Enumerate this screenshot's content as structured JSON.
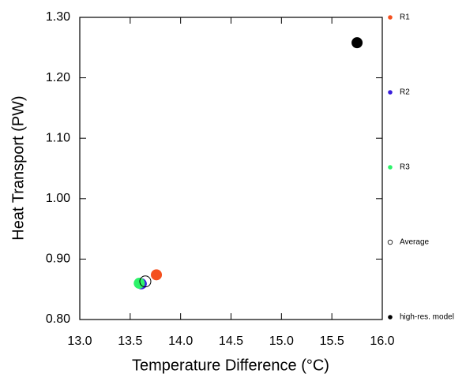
{
  "chart_data": {
    "type": "scatter",
    "x_label": "Temperature Difference (°C)",
    "y_label": "Heat Transport (PW)",
    "xlim": [
      13.0,
      16.0
    ],
    "ylim": [
      0.8,
      1.3
    ],
    "xticks": [
      {
        "value": 13,
        "label": "13.0"
      },
      {
        "value": 13.5,
        "label": "13.5"
      },
      {
        "value": 14,
        "label": "14.0"
      },
      {
        "value": 14.5,
        "label": "14.5"
      },
      {
        "value": 15,
        "label": "15.0"
      },
      {
        "value": 15.5,
        "label": "15.5"
      },
      {
        "value": 16,
        "label": "16.0"
      }
    ],
    "yticks": [
      {
        "value": 0.8,
        "label": "0.80"
      },
      {
        "value": 0.9,
        "label": "0.90"
      },
      {
        "value": 1.0,
        "label": "1.00"
      },
      {
        "value": 1.1,
        "label": "1.10"
      },
      {
        "value": 1.2,
        "label": "1.20"
      },
      {
        "value": 1.3,
        "label": "1.30"
      }
    ],
    "series": [
      {
        "name": "R1",
        "color": "#f4501e",
        "marker": "filled",
        "x": [
          13.76
        ],
        "values": [
          0.874
        ]
      },
      {
        "name": "R2",
        "color": "#3a1fdc",
        "marker": "filled",
        "x": [
          13.61
        ],
        "values": [
          0.859
        ]
      },
      {
        "name": "R3",
        "color": "#2df36a",
        "marker": "filled",
        "x": [
          13.59
        ],
        "values": [
          0.86
        ]
      },
      {
        "name": "Average",
        "color": "#000000",
        "marker": "open",
        "x": [
          13.65
        ],
        "values": [
          0.863
        ]
      },
      {
        "name": "high-res. model",
        "color": "#000000",
        "marker": "filled",
        "x": [
          15.75
        ],
        "values": [
          1.258
        ]
      }
    ]
  }
}
